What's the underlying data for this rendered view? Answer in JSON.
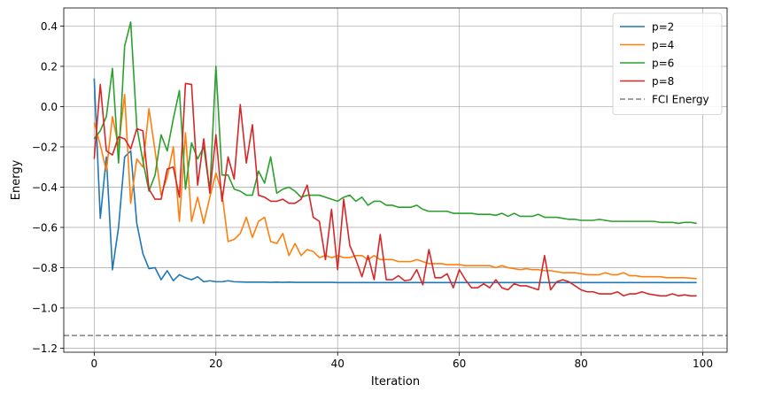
{
  "chart_data": {
    "type": "line",
    "title": "",
    "xlabel": "Iteration",
    "ylabel": "Energy",
    "xlim": [
      -5,
      104
    ],
    "ylim": [
      -1.22,
      0.49
    ],
    "xticks": [
      0,
      20,
      40,
      60,
      80,
      100
    ],
    "xtick_labels": [
      "0",
      "20",
      "40",
      "60",
      "80",
      "100"
    ],
    "yticks": [
      0.4,
      0.2,
      0.0,
      -0.2,
      -0.4,
      -0.6,
      -0.8,
      -1.0,
      -1.2
    ],
    "ytick_labels": [
      "0.4",
      "0.2",
      "0.0",
      "−0.2",
      "−0.4",
      "−0.6",
      "−0.8",
      "−1.0",
      "−1.2"
    ],
    "grid": true,
    "legend_position": "top-right",
    "series": [
      {
        "name": "p=2",
        "color": "#1f77b4",
        "values": [
          0.14,
          -0.555,
          -0.25,
          -0.81,
          -0.6,
          -0.25,
          -0.22,
          -0.58,
          -0.73,
          -0.805,
          -0.8,
          -0.86,
          -0.815,
          -0.865,
          -0.835,
          -0.85,
          -0.86,
          -0.845,
          -0.87,
          -0.865,
          -0.87,
          -0.87,
          -0.865,
          -0.87,
          -0.871,
          -0.872,
          -0.872,
          -0.872,
          -0.872,
          -0.873,
          -0.872,
          -0.873,
          -0.872,
          -0.873,
          -0.873,
          -0.873,
          -0.873,
          -0.873,
          -0.873,
          -0.873,
          -0.874,
          -0.874,
          -0.874,
          -0.874,
          -0.874,
          -0.874,
          -0.874,
          -0.874,
          -0.874,
          -0.874,
          -0.874,
          -0.874,
          -0.874,
          -0.874,
          -0.874,
          -0.874,
          -0.874,
          -0.874,
          -0.874,
          -0.874,
          -0.874,
          -0.874,
          -0.874,
          -0.874,
          -0.874,
          -0.874,
          -0.874,
          -0.874,
          -0.874,
          -0.874,
          -0.874,
          -0.874,
          -0.874,
          -0.874,
          -0.874,
          -0.874,
          -0.874,
          -0.874,
          -0.874,
          -0.874,
          -0.874,
          -0.874,
          -0.874,
          -0.874,
          -0.874,
          -0.874,
          -0.874,
          -0.874,
          -0.874,
          -0.874,
          -0.874,
          -0.874,
          -0.874,
          -0.874,
          -0.874,
          -0.874,
          -0.874,
          -0.874,
          -0.874,
          -0.874
        ]
      },
      {
        "name": "p=4",
        "color": "#ff7f0e",
        "values": [
          -0.08,
          -0.19,
          -0.32,
          -0.05,
          -0.2,
          0.06,
          -0.48,
          -0.26,
          -0.3,
          -0.01,
          -0.22,
          -0.44,
          -0.35,
          -0.2,
          -0.57,
          -0.13,
          -0.57,
          -0.45,
          -0.58,
          -0.45,
          -0.33,
          -0.43,
          -0.67,
          -0.66,
          -0.63,
          -0.55,
          -0.65,
          -0.57,
          -0.55,
          -0.67,
          -0.68,
          -0.63,
          -0.74,
          -0.68,
          -0.74,
          -0.71,
          -0.72,
          -0.75,
          -0.74,
          -0.75,
          -0.74,
          -0.75,
          -0.75,
          -0.74,
          -0.74,
          -0.76,
          -0.74,
          -0.76,
          -0.76,
          -0.76,
          -0.77,
          -0.77,
          -0.77,
          -0.76,
          -0.77,
          -0.78,
          -0.78,
          -0.78,
          -0.785,
          -0.785,
          -0.785,
          -0.79,
          -0.79,
          -0.79,
          -0.79,
          -0.79,
          -0.8,
          -0.79,
          -0.8,
          -0.805,
          -0.81,
          -0.805,
          -0.81,
          -0.81,
          -0.815,
          -0.815,
          -0.82,
          -0.825,
          -0.825,
          -0.825,
          -0.83,
          -0.835,
          -0.835,
          -0.835,
          -0.825,
          -0.835,
          -0.835,
          -0.825,
          -0.84,
          -0.84,
          -0.845,
          -0.845,
          -0.845,
          -0.845,
          -0.85,
          -0.85,
          -0.85,
          -0.85,
          -0.852,
          -0.855
        ]
      },
      {
        "name": "p=6",
        "color": "#2ca02c",
        "values": [
          -0.16,
          -0.12,
          -0.05,
          0.19,
          -0.28,
          0.3,
          0.42,
          -0.1,
          -0.27,
          -0.42,
          -0.34,
          -0.14,
          -0.22,
          -0.06,
          0.08,
          -0.41,
          -0.18,
          -0.26,
          -0.2,
          -0.42,
          0.2,
          -0.34,
          -0.34,
          -0.41,
          -0.42,
          -0.44,
          -0.44,
          -0.32,
          -0.38,
          -0.25,
          -0.43,
          -0.41,
          -0.4,
          -0.42,
          -0.45,
          -0.44,
          -0.44,
          -0.44,
          -0.45,
          -0.46,
          -0.47,
          -0.45,
          -0.44,
          -0.47,
          -0.45,
          -0.49,
          -0.47,
          -0.47,
          -0.49,
          -0.49,
          -0.5,
          -0.5,
          -0.5,
          -0.49,
          -0.51,
          -0.52,
          -0.52,
          -0.52,
          -0.52,
          -0.53,
          -0.53,
          -0.53,
          -0.53,
          -0.535,
          -0.535,
          -0.535,
          -0.54,
          -0.53,
          -0.545,
          -0.53,
          -0.545,
          -0.545,
          -0.545,
          -0.535,
          -0.55,
          -0.55,
          -0.55,
          -0.555,
          -0.56,
          -0.56,
          -0.565,
          -0.565,
          -0.565,
          -0.56,
          -0.565,
          -0.57,
          -0.57,
          -0.57,
          -0.57,
          -0.57,
          -0.57,
          -0.57,
          -0.57,
          -0.575,
          -0.575,
          -0.575,
          -0.58,
          -0.575,
          -0.575,
          -0.58
        ]
      },
      {
        "name": "p=8",
        "color": "#d62728",
        "values": [
          -0.26,
          0.11,
          -0.22,
          -0.24,
          -0.15,
          -0.16,
          -0.21,
          -0.11,
          -0.12,
          -0.41,
          -0.46,
          -0.46,
          -0.31,
          -0.3,
          -0.45,
          0.115,
          0.11,
          -0.39,
          -0.16,
          -0.43,
          -0.14,
          -0.47,
          -0.25,
          -0.36,
          0.01,
          -0.28,
          -0.09,
          -0.44,
          -0.45,
          -0.47,
          -0.47,
          -0.46,
          -0.48,
          -0.48,
          -0.46,
          -0.39,
          -0.55,
          -0.57,
          -0.76,
          -0.51,
          -0.81,
          -0.46,
          -0.69,
          -0.76,
          -0.845,
          -0.74,
          -0.86,
          -0.635,
          -0.86,
          -0.86,
          -0.84,
          -0.865,
          -0.86,
          -0.81,
          -0.885,
          -0.71,
          -0.85,
          -0.85,
          -0.83,
          -0.9,
          -0.81,
          -0.86,
          -0.9,
          -0.9,
          -0.88,
          -0.9,
          -0.86,
          -0.9,
          -0.91,
          -0.88,
          -0.89,
          -0.89,
          -0.9,
          -0.91,
          -0.74,
          -0.91,
          -0.87,
          -0.86,
          -0.87,
          -0.89,
          -0.91,
          -0.92,
          -0.92,
          -0.93,
          -0.93,
          -0.93,
          -0.92,
          -0.94,
          -0.93,
          -0.93,
          -0.92,
          -0.93,
          -0.935,
          -0.94,
          -0.94,
          -0.93,
          -0.94,
          -0.935,
          -0.94,
          -0.94
        ]
      }
    ],
    "reference_lines": [
      {
        "name": "FCI Energy",
        "y": -1.137,
        "color": "#808080",
        "style": "dashed"
      }
    ]
  }
}
